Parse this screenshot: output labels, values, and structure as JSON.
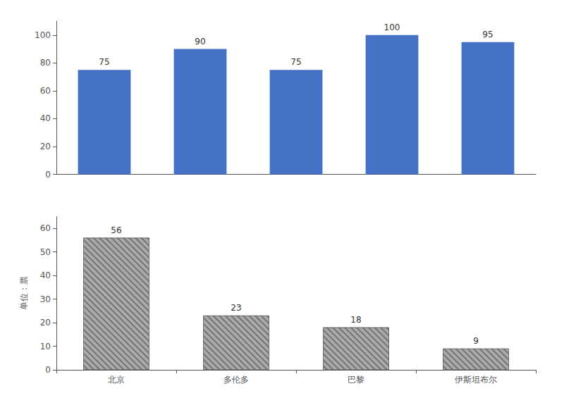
{
  "chart_data": [
    {
      "type": "bar",
      "categories": [
        null,
        null,
        null,
        null,
        null
      ],
      "values": [
        75,
        90,
        75,
        100,
        95
      ],
      "color": "#4472c4",
      "ylim": [
        0,
        110
      ],
      "yticks": [
        0,
        20,
        40,
        60,
        80,
        100
      ],
      "data_labels": true,
      "tick_labels": "y",
      "grid": false
    },
    {
      "type": "bar",
      "categories": [
        "北京",
        "多伦多",
        "巴黎",
        "伊斯坦布尔"
      ],
      "values": [
        56,
        23,
        18,
        9
      ],
      "color": "#aaaaaa",
      "ylabel": "单位：票",
      "ylim": [
        0,
        65
      ],
      "yticks": [
        0,
        10,
        20,
        30,
        40,
        50,
        60
      ],
      "data_labels": true,
      "grid": false
    }
  ]
}
